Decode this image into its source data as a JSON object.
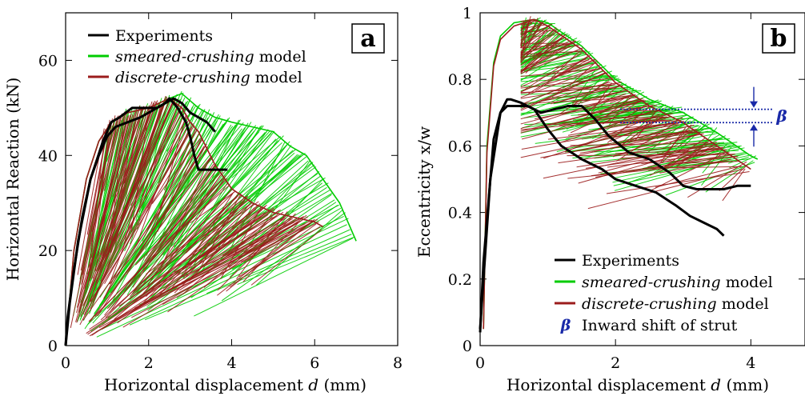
{
  "chart_data": [
    {
      "panel": "a",
      "type": "line",
      "xlabel": "Horizontal displacement d (mm)",
      "ylabel": "Horizontal Reaction (kN)",
      "xlim": [
        0,
        8
      ],
      "ylim": [
        0,
        70
      ],
      "xticks": [
        0,
        2,
        4,
        6,
        8
      ],
      "yticks": [
        0,
        20,
        40,
        60
      ],
      "legend": [
        {
          "label_italic": "",
          "label_rest": "Experiments",
          "color": "#000000"
        },
        {
          "label_italic": "smeared-crushing",
          "label_rest": " model",
          "color": "#00cc00"
        },
        {
          "label_italic": "discrete-crushing",
          "label_rest": " model",
          "color": "#9b1c1c"
        }
      ],
      "series": [
        {
          "name": "Experiments",
          "color": "#000000",
          "lines": [
            {
              "x": [
                0,
                0.05,
                0.2,
                0.4,
                0.6,
                0.8,
                1.0,
                1.2,
                1.5,
                1.8,
                2.0,
                2.2,
                2.4,
                2.6,
                2.8,
                3.0,
                3.2,
                3.4,
                3.6
              ],
              "y": [
                0,
                6,
                16,
                27,
                35,
                40,
                44,
                46,
                47,
                48,
                49,
                50,
                51,
                52,
                51,
                49,
                48,
                47,
                45
              ]
            },
            {
              "x": [
                0,
                0.1,
                0.3,
                0.6,
                0.9,
                1.1,
                1.3,
                1.6,
                1.9,
                2.2,
                2.4,
                2.5,
                2.7,
                2.9,
                3.0,
                3.1,
                3.2,
                3.5,
                3.9
              ],
              "y": [
                0,
                9,
                22,
                35,
                43,
                47,
                48,
                50,
                50,
                50,
                51,
                52,
                50,
                47,
                44,
                40,
                37,
                37,
                37
              ]
            }
          ]
        },
        {
          "name": "smeared-crushing model",
          "color": "#00cc00",
          "envelope": {
            "x": [
              0,
              0.2,
              0.5,
              0.8,
              1.1,
              1.5,
              2.0,
              2.5,
              2.8,
              3.2,
              3.6,
              4.0,
              4.5,
              5.0,
              5.4,
              5.8,
              6.2,
              6.6,
              7.0
            ],
            "y": [
              0,
              20,
              35,
              43,
              47,
              49,
              50,
              52,
              53,
              50,
              48,
              47,
              46,
              45,
              42,
              40,
              35,
              30,
              22
            ]
          }
        },
        {
          "name": "discrete-crushing model",
          "color": "#9b1c1c",
          "envelope": {
            "x": [
              0,
              0.2,
              0.5,
              0.8,
              1.1,
              1.5,
              2.0,
              2.5,
              2.8,
              3.0,
              3.2,
              3.6,
              4.0,
              4.5,
              5.0,
              5.5,
              6.0,
              6.2
            ],
            "y": [
              0,
              20,
              35,
              43,
              47,
              49,
              50,
              52,
              50,
              47,
              45,
              38,
              33,
              30,
              28,
              27,
              26,
              25
            ]
          }
        }
      ]
    },
    {
      "panel": "b",
      "type": "line",
      "xlabel": "Horizontal displacement d (mm)",
      "ylabel": "Eccentricity x/w",
      "xlim": [
        0,
        4.8
      ],
      "ylim": [
        0,
        1
      ],
      "xticks": [
        0,
        2,
        4
      ],
      "yticks": [
        0,
        0.2,
        0.4,
        0.6,
        0.8,
        1
      ],
      "legend": [
        {
          "label_italic": "",
          "label_rest": "Experiments",
          "color": "#000000"
        },
        {
          "label_italic": "smeared-crushing",
          "label_rest": " model",
          "color": "#00cc00"
        },
        {
          "label_italic": "discrete-crushing",
          "label_rest": " model",
          "color": "#9b1c1c"
        },
        {
          "label_italic": "",
          "label_rest": "Inward shift of strut",
          "color": "#1a2aa8",
          "symbol": "β"
        }
      ],
      "annotation": {
        "symbol": "β",
        "y_upper": 0.71,
        "y_lower": 0.67
      },
      "series": [
        {
          "name": "Experiments",
          "color": "#000000",
          "lines": [
            {
              "x": [
                0.0,
                0.05,
                0.2,
                0.3,
                0.4,
                0.5,
                0.7,
                0.9,
                1.1,
                1.3,
                1.5,
                1.7,
                1.9,
                2.2,
                2.5,
                2.8,
                3.0,
                3.2,
                3.4,
                3.6,
                3.8,
                4.0
              ],
              "y": [
                0.04,
                0.25,
                0.62,
                0.7,
                0.72,
                0.72,
                0.72,
                0.7,
                0.71,
                0.72,
                0.72,
                0.68,
                0.63,
                0.58,
                0.56,
                0.52,
                0.48,
                0.47,
                0.47,
                0.47,
                0.48,
                0.48
              ]
            },
            {
              "x": [
                0.0,
                0.05,
                0.15,
                0.3,
                0.4,
                0.45,
                0.6,
                0.8,
                1.0,
                1.2,
                1.5,
                1.8,
                2.0,
                2.3,
                2.6,
                2.9,
                3.1,
                3.3,
                3.5,
                3.6
              ],
              "y": [
                0.05,
                0.2,
                0.5,
                0.7,
                0.74,
                0.74,
                0.73,
                0.71,
                0.65,
                0.6,
                0.56,
                0.53,
                0.5,
                0.48,
                0.46,
                0.42,
                0.39,
                0.37,
                0.35,
                0.33
              ]
            }
          ]
        },
        {
          "name": "smeared-crushing model",
          "color": "#00cc00",
          "envelope": {
            "x": [
              0.05,
              0.1,
              0.2,
              0.3,
              0.5,
              0.8,
              1.0,
              1.5,
              2.0,
              2.5,
              3.0,
              3.5,
              4.0,
              4.1
            ],
            "y": [
              0.05,
              0.6,
              0.85,
              0.93,
              0.97,
              0.98,
              0.97,
              0.9,
              0.8,
              0.74,
              0.7,
              0.64,
              0.57,
              0.56
            ]
          }
        },
        {
          "name": "discrete-crushing model",
          "color": "#9b1c1c",
          "envelope": {
            "x": [
              0.05,
              0.1,
              0.2,
              0.3,
              0.5,
              0.8,
              1.0,
              1.5,
              2.0,
              2.5,
              3.0,
              3.5,
              4.0
            ],
            "y": [
              0.05,
              0.58,
              0.84,
              0.92,
              0.96,
              0.98,
              0.96,
              0.89,
              0.79,
              0.72,
              0.67,
              0.6,
              0.53
            ]
          }
        }
      ]
    }
  ],
  "panels": {
    "a": {
      "letter": "a"
    },
    "b": {
      "letter": "b"
    }
  }
}
